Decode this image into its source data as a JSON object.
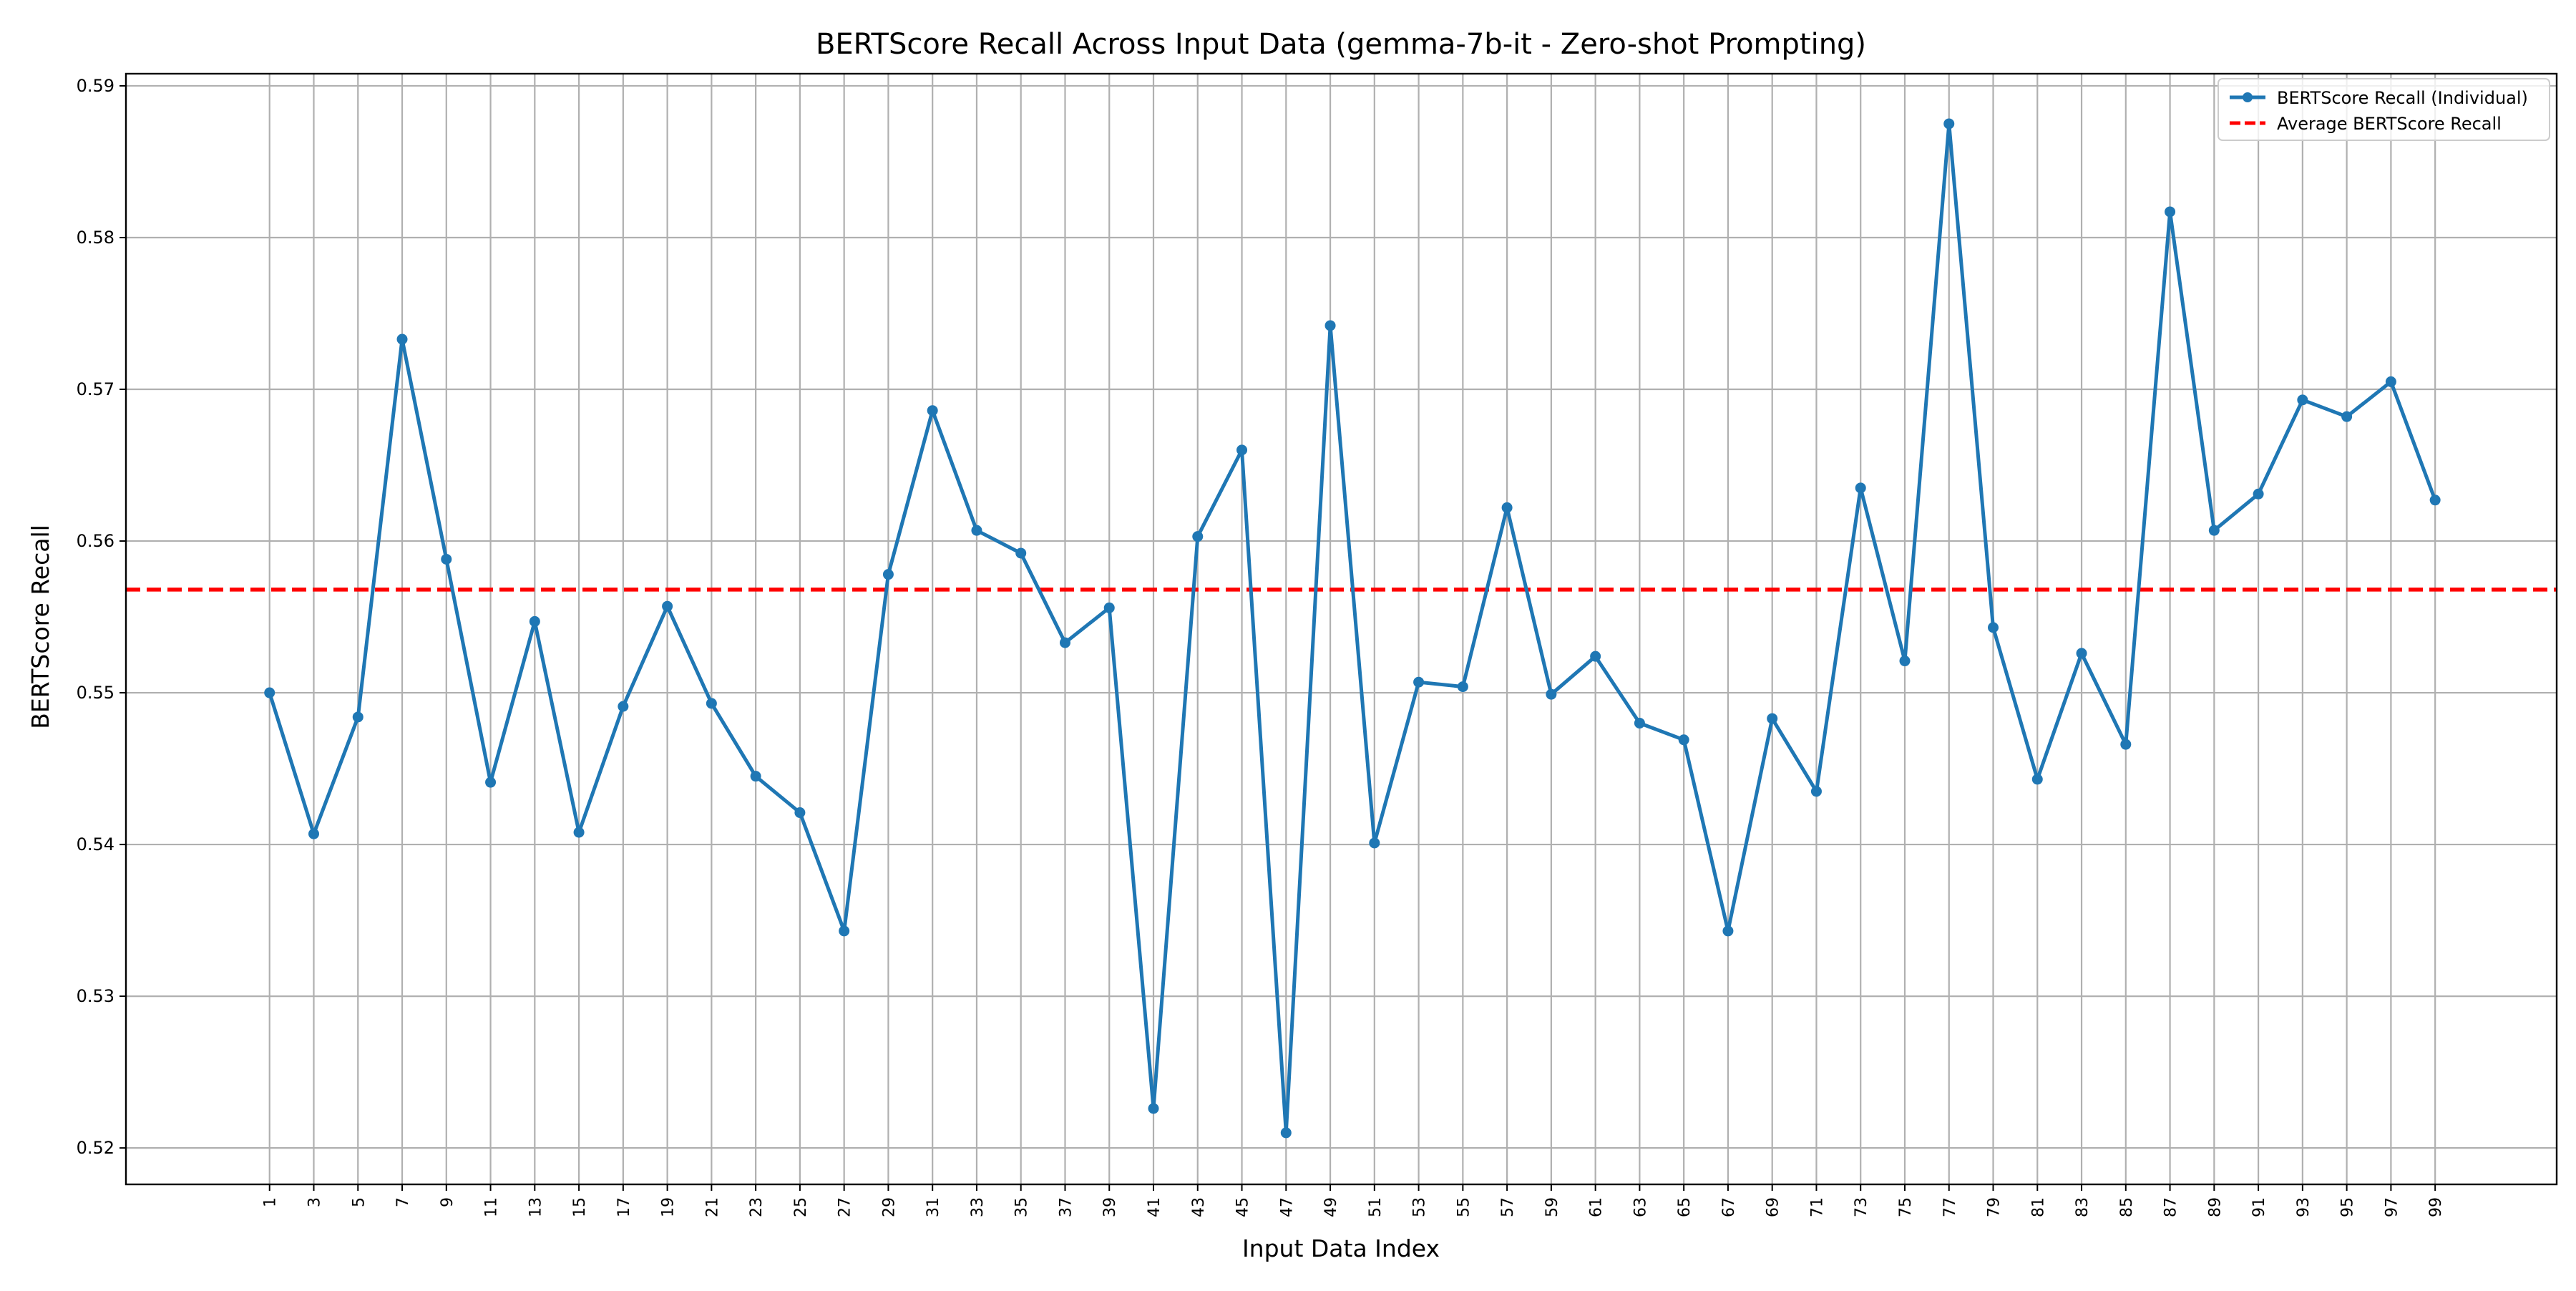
{
  "chart_data": {
    "type": "line",
    "title": "BERTScore Recall Across Input Data (gemma-7b-it - Zero-shot Prompting)",
    "xlabel": "Input Data Index",
    "ylabel": "BERTScore Recall",
    "xlim": [
      -5.5,
      104.5
    ],
    "ylim": [
      0.5176,
      0.5908
    ],
    "x_ticks": [
      1,
      3,
      5,
      7,
      9,
      11,
      13,
      15,
      17,
      19,
      21,
      23,
      25,
      27,
      29,
      31,
      33,
      35,
      37,
      39,
      41,
      43,
      45,
      47,
      49,
      51,
      53,
      55,
      57,
      59,
      61,
      63,
      65,
      67,
      69,
      71,
      73,
      75,
      77,
      79,
      81,
      83,
      85,
      87,
      89,
      91,
      93,
      95,
      97,
      99
    ],
    "y_ticks": [
      0.52,
      0.53,
      0.54,
      0.55,
      0.56,
      0.57,
      0.58,
      0.59
    ],
    "grid": true,
    "legend_position": "top-right",
    "x": [
      1,
      3,
      5,
      7,
      9,
      11,
      13,
      15,
      17,
      19,
      21,
      23,
      25,
      27,
      29,
      31,
      33,
      35,
      37,
      39,
      41,
      43,
      45,
      47,
      49,
      51,
      53,
      55,
      57,
      59,
      61,
      63,
      65,
      67,
      69,
      71,
      73,
      75,
      77,
      79,
      81,
      83,
      85,
      87,
      89,
      91,
      93,
      95,
      97,
      99
    ],
    "series": [
      {
        "name": "BERTScore Recall (Individual)",
        "color": "#1f77b4",
        "style": "solid-with-markers",
        "values": [
          0.55,
          0.5407,
          0.5484,
          0.5733,
          0.5588,
          0.5441,
          0.5547,
          0.5408,
          0.5491,
          0.5557,
          0.5493,
          0.5445,
          0.5421,
          0.5343,
          0.5578,
          0.5686,
          0.5607,
          0.5592,
          0.5533,
          0.5556,
          0.5226,
          0.5603,
          0.566,
          0.521,
          0.5742,
          0.5401,
          0.5507,
          0.5504,
          0.5622,
          0.5499,
          0.5524,
          0.548,
          0.5469,
          0.5343,
          0.5483,
          0.5435,
          0.5635,
          0.5521,
          0.5875,
          0.5543,
          0.5443,
          0.5526,
          0.5466,
          0.5817,
          0.5607,
          0.5631,
          0.5693,
          0.5682,
          0.5705,
          0.5627
        ]
      },
      {
        "name": "Average BERTScore Recall",
        "color": "#ff0000",
        "style": "dashed",
        "value": 0.5568
      }
    ]
  }
}
